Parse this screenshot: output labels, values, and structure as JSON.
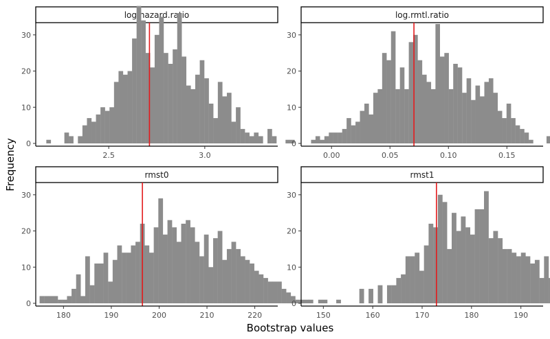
{
  "chart_data": {
    "type": "bar",
    "xlabel": "Bootstrap values",
    "ylabel": "Frequency",
    "grid": false,
    "legend": "none",
    "bar_color": "#8c8c8c",
    "line_color": "#e31a1c",
    "panels": [
      {
        "id": "log-hazard-ratio",
        "title": "log.hazard.ratio",
        "xlim": [
          2.12,
          3.38
        ],
        "ylim": [
          0,
          33
        ],
        "x_ticks": [
          2.5,
          3.0
        ],
        "x_tick_labels": [
          "2.5",
          "3.0"
        ],
        "y_ticks": [
          0,
          10,
          20,
          30
        ],
        "y_tick_labels": [
          "0",
          "10",
          "20",
          "30"
        ],
        "reference_line": 2.712,
        "bin_start": 2.175,
        "bin_width": 0.0235,
        "counts": [
          1,
          0,
          0,
          0,
          3,
          2,
          0,
          2,
          5,
          7,
          6,
          8,
          10,
          9,
          10,
          17,
          20,
          19,
          20,
          29,
          38,
          34,
          25,
          21,
          30,
          35,
          25,
          22,
          26,
          36,
          24,
          16,
          15,
          19,
          23,
          18,
          11,
          7,
          17,
          13,
          14,
          6,
          10,
          4,
          3,
          2,
          3,
          2,
          0,
          4,
          2,
          0,
          0,
          1,
          1
        ]
      },
      {
        "id": "log-rmtl-ratio",
        "title": "log.rmtl.ratio",
        "xlim": [
          -0.026,
          0.181
        ],
        "ylim": [
          0,
          33
        ],
        "x_ticks": [
          0.0,
          0.05,
          0.1,
          0.15
        ],
        "x_tick_labels": [
          "0.00",
          "0.05",
          "0.10",
          "0.15"
        ],
        "y_ticks": [
          0,
          10,
          20,
          30
        ],
        "y_tick_labels": [
          "0",
          "10",
          "20",
          "30"
        ],
        "reference_line": 0.0705,
        "bin_start": -0.0175,
        "bin_width": 0.0038,
        "counts": [
          1,
          2,
          1,
          2,
          3,
          3,
          3,
          4,
          7,
          5,
          6,
          9,
          11,
          8,
          14,
          15,
          25,
          23,
          31,
          15,
          21,
          15,
          28,
          30,
          23,
          19,
          17,
          15,
          33,
          24,
          25,
          15,
          22,
          21,
          14,
          18,
          12,
          16,
          13,
          17,
          18,
          14,
          9,
          7,
          11,
          7,
          5,
          4,
          3,
          1,
          0,
          0,
          0,
          2,
          0,
          0,
          0,
          0,
          3,
          1
        ]
      },
      {
        "id": "rmst0",
        "title": "rmst0",
        "xlim": [
          174.2,
          224.8
        ],
        "ylim": [
          0,
          33
        ],
        "x_ticks": [
          180,
          190,
          200,
          210,
          220
        ],
        "x_tick_labels": [
          "180",
          "190",
          "200",
          "210",
          "220"
        ],
        "y_ticks": [
          0,
          10,
          20,
          30
        ],
        "y_tick_labels": [
          "0",
          "10",
          "20",
          "30"
        ],
        "reference_line": 196.5,
        "bin_start": 175.0,
        "bin_width": 0.955,
        "counts": [
          2,
          2,
          2,
          2,
          1,
          1,
          2,
          4,
          8,
          2,
          13,
          5,
          11,
          11,
          14,
          6,
          12,
          16,
          14,
          14,
          16,
          17,
          22,
          16,
          14,
          21,
          29,
          19,
          23,
          21,
          17,
          22,
          23,
          21,
          17,
          13,
          19,
          10,
          18,
          20,
          12,
          15,
          17,
          15,
          13,
          12,
          11,
          9,
          8,
          7,
          6,
          6,
          6,
          4,
          3,
          2,
          1,
          1,
          1,
          0,
          0,
          1,
          1
        ]
      },
      {
        "id": "rmst1",
        "title": "rmst1",
        "xlim": [
          145.5,
          194.5
        ],
        "ylim": [
          0,
          33
        ],
        "x_ticks": [
          150,
          160,
          170,
          180,
          190
        ],
        "x_tick_labels": [
          "150",
          "160",
          "170",
          "180",
          "190"
        ],
        "y_ticks": [
          0,
          10,
          20,
          30
        ],
        "y_tick_labels": [
          "0",
          "10",
          "20",
          "30"
        ],
        "reference_line": 172.9,
        "bin_start": 147.0,
        "bin_width": 0.935,
        "counts": [
          1,
          0,
          0,
          0,
          0,
          0,
          1,
          0,
          0,
          0,
          0,
          4,
          0,
          4,
          0,
          5,
          0,
          5,
          5,
          7,
          8,
          13,
          13,
          14,
          9,
          16,
          22,
          21,
          30,
          28,
          15,
          25,
          20,
          24,
          21,
          19,
          26,
          26,
          31,
          18,
          20,
          18,
          15,
          15,
          14,
          13,
          14,
          13,
          11,
          12,
          7,
          13,
          7,
          7,
          4,
          4,
          1,
          2,
          1,
          1,
          0,
          2,
          1
        ]
      }
    ]
  }
}
